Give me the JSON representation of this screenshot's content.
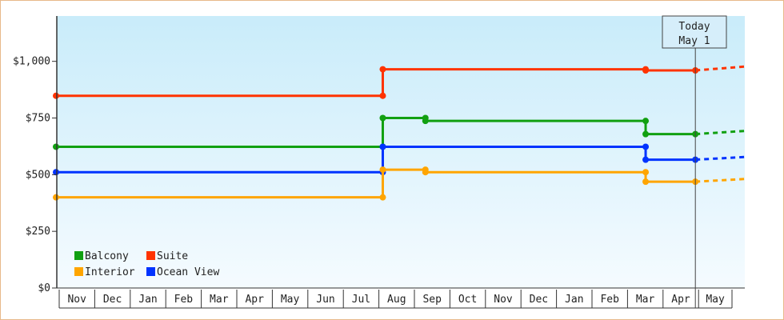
{
  "chart_data": {
    "type": "line",
    "title": "",
    "xlabel": "",
    "ylabel": "",
    "step": true,
    "x_unit": "months",
    "ylim": [
      0,
      1200
    ],
    "y_ticks": [
      {
        "value": 0,
        "label": "$0"
      },
      {
        "value": 250,
        "label": "$250"
      },
      {
        "value": 500,
        "label": "$500"
      },
      {
        "value": 750,
        "label": "$750"
      },
      {
        "value": 1000,
        "label": "$1,000"
      }
    ],
    "months": [
      "Nov",
      "Dec",
      "Jan",
      "Feb",
      "Mar",
      "Apr",
      "May",
      "Jun",
      "Jul",
      "Aug",
      "Sep",
      "Oct",
      "Nov",
      "Dec",
      "Jan",
      "Feb",
      "Mar",
      "Apr",
      "May"
    ],
    "today": {
      "line1": "Today",
      "line2": "May 1",
      "x": 18
    },
    "legend": [
      {
        "name": "Balcony",
        "color": "#11a011"
      },
      {
        "name": "Suite",
        "color": "#ff3300"
      },
      {
        "name": "Interior",
        "color": "#ffa500"
      },
      {
        "name": "Ocean View",
        "color": "#0033ff"
      }
    ],
    "series": [
      {
        "name": "Suite",
        "color": "#ff3300",
        "points": [
          [
            0,
            848
          ],
          [
            9.2,
            848
          ],
          [
            9.2,
            965
          ],
          [
            16.6,
            965
          ],
          [
            16.6,
            960
          ],
          [
            18,
            960
          ]
        ],
        "projection": [
          [
            18,
            960
          ],
          [
            19.4,
            977
          ]
        ]
      },
      {
        "name": "Balcony",
        "color": "#11a011",
        "points": [
          [
            0,
            623
          ],
          [
            9.2,
            623
          ],
          [
            9.2,
            750
          ],
          [
            10.4,
            750
          ],
          [
            10.4,
            737
          ],
          [
            16.6,
            737
          ],
          [
            16.6,
            679
          ],
          [
            18,
            679
          ]
        ],
        "projection": [
          [
            18,
            679
          ],
          [
            19.4,
            693
          ]
        ]
      },
      {
        "name": "Ocean View",
        "color": "#0033ff",
        "points": [
          [
            0,
            511
          ],
          [
            9.2,
            511
          ],
          [
            9.2,
            623
          ],
          [
            16.6,
            623
          ],
          [
            16.6,
            566
          ],
          [
            18,
            566
          ]
        ],
        "projection": [
          [
            18,
            566
          ],
          [
            19.4,
            578
          ]
        ]
      },
      {
        "name": "Interior",
        "color": "#ffa500",
        "points": [
          [
            0,
            400
          ],
          [
            9.2,
            400
          ],
          [
            9.2,
            522
          ],
          [
            10.4,
            522
          ],
          [
            10.4,
            511
          ],
          [
            16.6,
            511
          ],
          [
            16.6,
            469
          ],
          [
            18,
            469
          ]
        ],
        "projection": [
          [
            18,
            469
          ],
          [
            19.4,
            481
          ]
        ]
      }
    ]
  }
}
